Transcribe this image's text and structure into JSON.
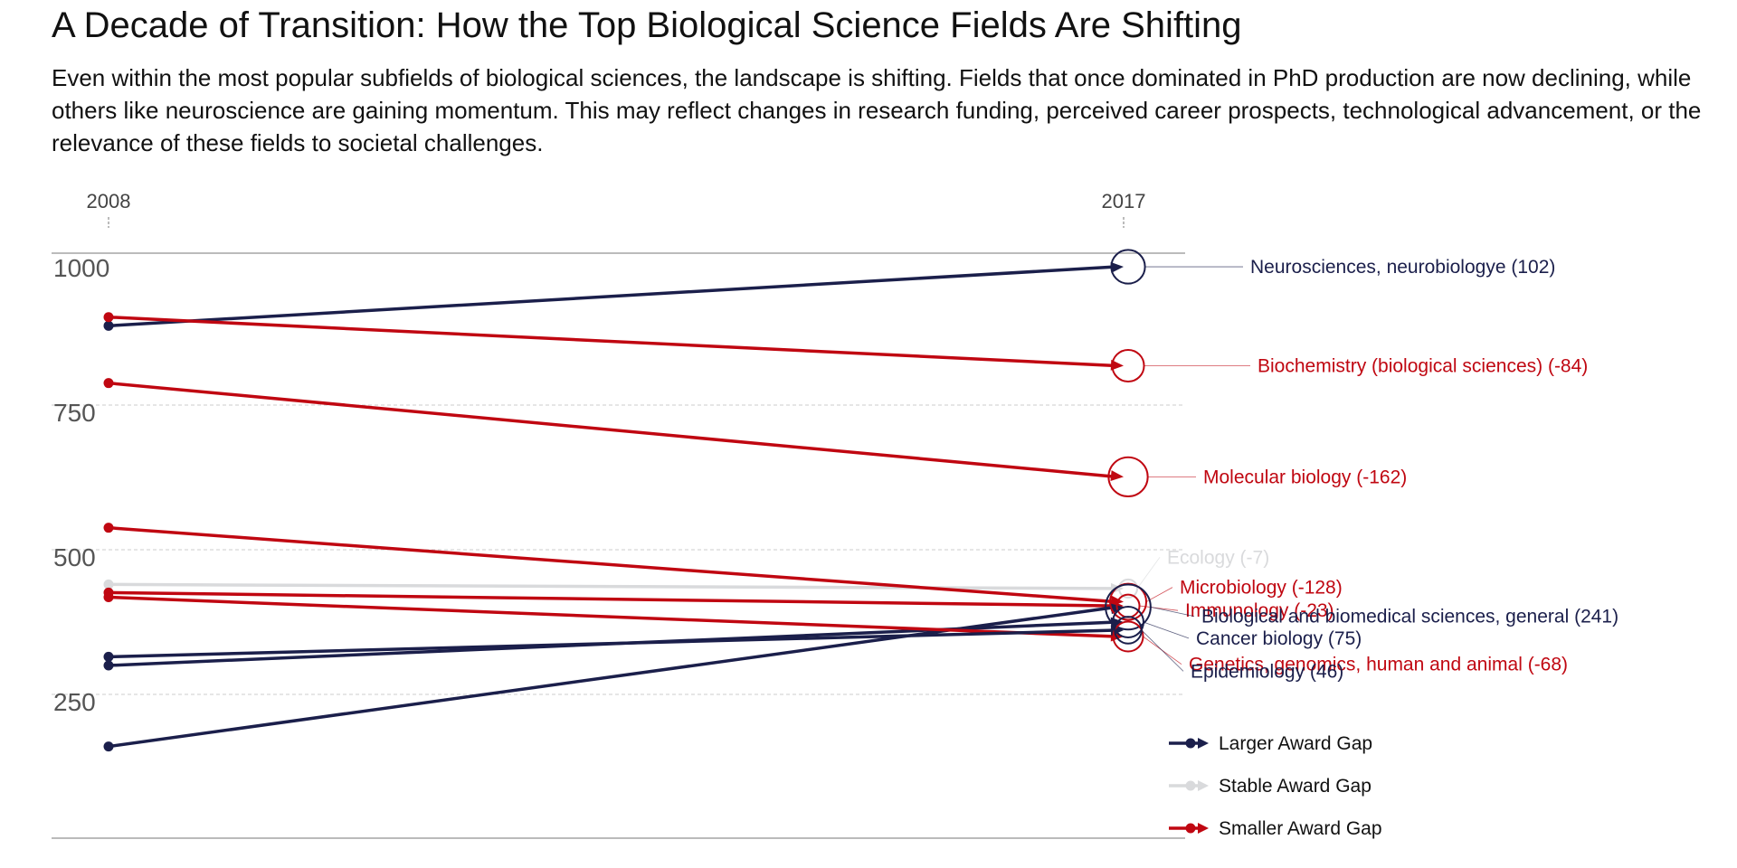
{
  "title": "A Decade of Transition: How the Top Biological Science Fields Are Shifting",
  "subtitle": "Even within the most popular subfields of biological sciences, the landscape is shifting. Fields that once dominated in PhD production are now declining, while others like neuroscience are gaining momentum. This may reflect changes in research funding, perceived career prospects, technological advancement, or the relevance of these fields to societal challenges.",
  "colors": {
    "larger": "#1b1f4b",
    "stable": "#d9dadc",
    "smaller": "#c00711",
    "grid": "#cccccc",
    "axis_line": "#bbbbbb"
  },
  "chart_data": {
    "type": "line",
    "subtype": "slope",
    "x": [
      "2008",
      "2017"
    ],
    "ylim": [
      0,
      1000
    ],
    "yticks": [
      "250",
      "500",
      "750",
      "1000"
    ],
    "grid": true,
    "legend_position": "bottom-right",
    "legend": [
      {
        "key": "larger",
        "label": "Larger Award Gap"
      },
      {
        "key": "stable",
        "label": "Stable Award Gap"
      },
      {
        "key": "smaller",
        "label": "Smaller Award Gap"
      }
    ],
    "series": [
      {
        "name": "Neurosciences, neurobiologye",
        "change": 102,
        "label": "Neurosciences, neurobiologye (102)",
        "group": "larger",
        "v2008": 887,
        "v2017": 989,
        "label_y": 989
      },
      {
        "name": "Biochemistry (biological sciences)",
        "change": -84,
        "label": "Biochemistry (biological sciences) (-84)",
        "group": "smaller",
        "v2008": 902,
        "v2017": 818,
        "label_y": 818
      },
      {
        "name": "Molecular biology",
        "change": -162,
        "label": "Molecular biology (-162)",
        "group": "smaller",
        "v2008": 788,
        "v2017": 626,
        "label_y": 626
      },
      {
        "name": "Ecology",
        "change": -7,
        "label": "Ecology (-7)",
        "group": "stable",
        "v2008": 440,
        "v2017": 433,
        "label_y": 487
      },
      {
        "name": "Microbiology",
        "change": -128,
        "label": "Microbiology (-128)",
        "group": "smaller",
        "v2008": 538,
        "v2017": 410,
        "label_y": 435
      },
      {
        "name": "Immunology",
        "change": -23,
        "label": "Immunology (-23)",
        "group": "smaller",
        "v2008": 426,
        "v2017": 403,
        "label_y": 395
      },
      {
        "name": "Biological and biomedical sciences, general",
        "change": 241,
        "label": "Biological and biomedical sciences, general (241)",
        "group": "larger",
        "v2008": 160,
        "v2017": 401,
        "label_y": 385
      },
      {
        "name": "Cancer biology",
        "change": 75,
        "label": "Cancer biology (75)",
        "group": "larger",
        "v2008": 300,
        "v2017": 375,
        "label_y": 347
      },
      {
        "name": "Genetics, genomics, human and animal",
        "change": -68,
        "label": "Genetics, genomics, human and animal (-68)",
        "group": "smaller",
        "v2008": 418,
        "v2017": 350,
        "label_y": 302
      },
      {
        "name": "Epidemiology",
        "change": 46,
        "label": "Epidemiology (46)",
        "group": "larger",
        "v2008": 315,
        "v2017": 361,
        "label_y": 290
      }
    ]
  }
}
